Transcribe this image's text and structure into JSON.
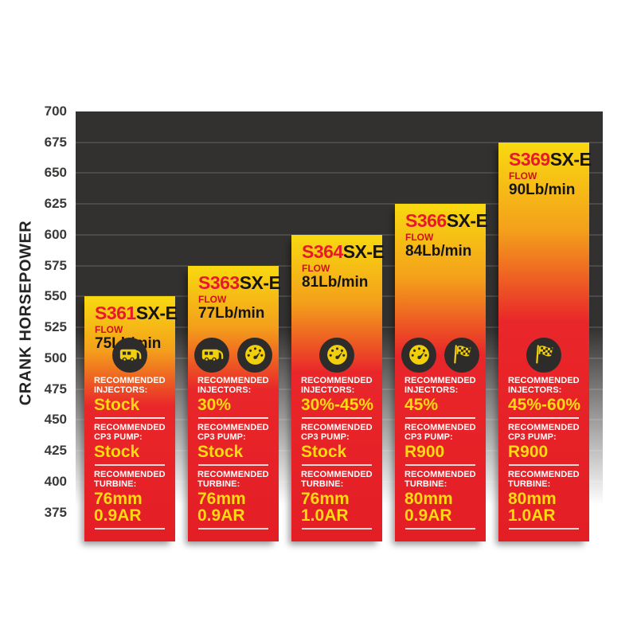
{
  "colors": {
    "bar_gradient_top": "#f8d910",
    "bar_gradient_mid": "#f4a01b",
    "bar_gradient_bottom": "#e31e25",
    "value_yellow": "#ffd912",
    "model_red": "#e8192c",
    "plot_background": "#33312f",
    "grid_line": "#4c4a48",
    "icon_circle": "#2e2c2a"
  },
  "chart_data": {
    "type": "bar",
    "title": "",
    "xlabel": "",
    "ylabel": "CRANK HORSEPOWER",
    "ylim": [
      375,
      700
    ],
    "yticks": [
      700,
      675,
      650,
      625,
      600,
      575,
      550,
      525,
      500,
      475,
      450,
      425,
      400,
      375
    ],
    "grid": true,
    "legend": "none",
    "categories": [
      "S361SX-E",
      "S363SX-E",
      "S364SX-E",
      "S366SX-E",
      "S369SX-E"
    ],
    "values": [
      550,
      575,
      600,
      625,
      675
    ],
    "bars": [
      {
        "model_prefix": "S361",
        "model_suffix": "SX-E",
        "flow_label": "FLOW",
        "flow_value": "75Lb/min",
        "crank_hp": 550,
        "icons": [
          "rv"
        ],
        "sections": [
          {
            "header": "RECOMMENDED INJECTORS:",
            "value": "Stock"
          },
          {
            "header": "RECOMMENDED CP3 PUMP:",
            "value": "Stock"
          },
          {
            "header": "RECOMMENDED TURBINE:",
            "value": "76mm 0.9AR"
          }
        ]
      },
      {
        "model_prefix": "S363",
        "model_suffix": "SX-E",
        "flow_label": "FLOW",
        "flow_value": "77Lb/min",
        "crank_hp": 575,
        "icons": [
          "rv",
          "gauge"
        ],
        "sections": [
          {
            "header": "RECOMMENDED INJECTORS:",
            "value": "30%"
          },
          {
            "header": "RECOMMENDED CP3 PUMP:",
            "value": "Stock"
          },
          {
            "header": "RECOMMENDED TURBINE:",
            "value": "76mm 0.9AR"
          }
        ]
      },
      {
        "model_prefix": "S364",
        "model_suffix": "SX-E",
        "flow_label": "FLOW",
        "flow_value": "81Lb/min",
        "crank_hp": 600,
        "icons": [
          "gauge"
        ],
        "sections": [
          {
            "header": "RECOMMENDED INJECTORS:",
            "value": "30%-45%"
          },
          {
            "header": "RECOMMENDED CP3 PUMP:",
            "value": "Stock"
          },
          {
            "header": "RECOMMENDED TURBINE:",
            "value": "76mm 1.0AR"
          }
        ]
      },
      {
        "model_prefix": "S366",
        "model_suffix": "SX-E",
        "flow_label": "FLOW",
        "flow_value": "84Lb/min",
        "crank_hp": 625,
        "icons": [
          "gauge",
          "flag"
        ],
        "sections": [
          {
            "header": "RECOMMENDED INJECTORS:",
            "value": "45%"
          },
          {
            "header": "RECOMMENDED CP3 PUMP:",
            "value": "R900"
          },
          {
            "header": "RECOMMENDED TURBINE:",
            "value": "80mm 0.9AR"
          }
        ]
      },
      {
        "model_prefix": "S369",
        "model_suffix": "SX-E",
        "flow_label": "FLOW",
        "flow_value": "90Lb/min",
        "crank_hp": 675,
        "icons": [
          "flag"
        ],
        "sections": [
          {
            "header": "RECOMMENDED INJECTORS:",
            "value": "45%-60%"
          },
          {
            "header": "RECOMMENDED CP3 PUMP:",
            "value": "R900"
          },
          {
            "header": "RECOMMENDED TURBINE:",
            "value": "80mm 1.0AR"
          }
        ]
      }
    ]
  }
}
